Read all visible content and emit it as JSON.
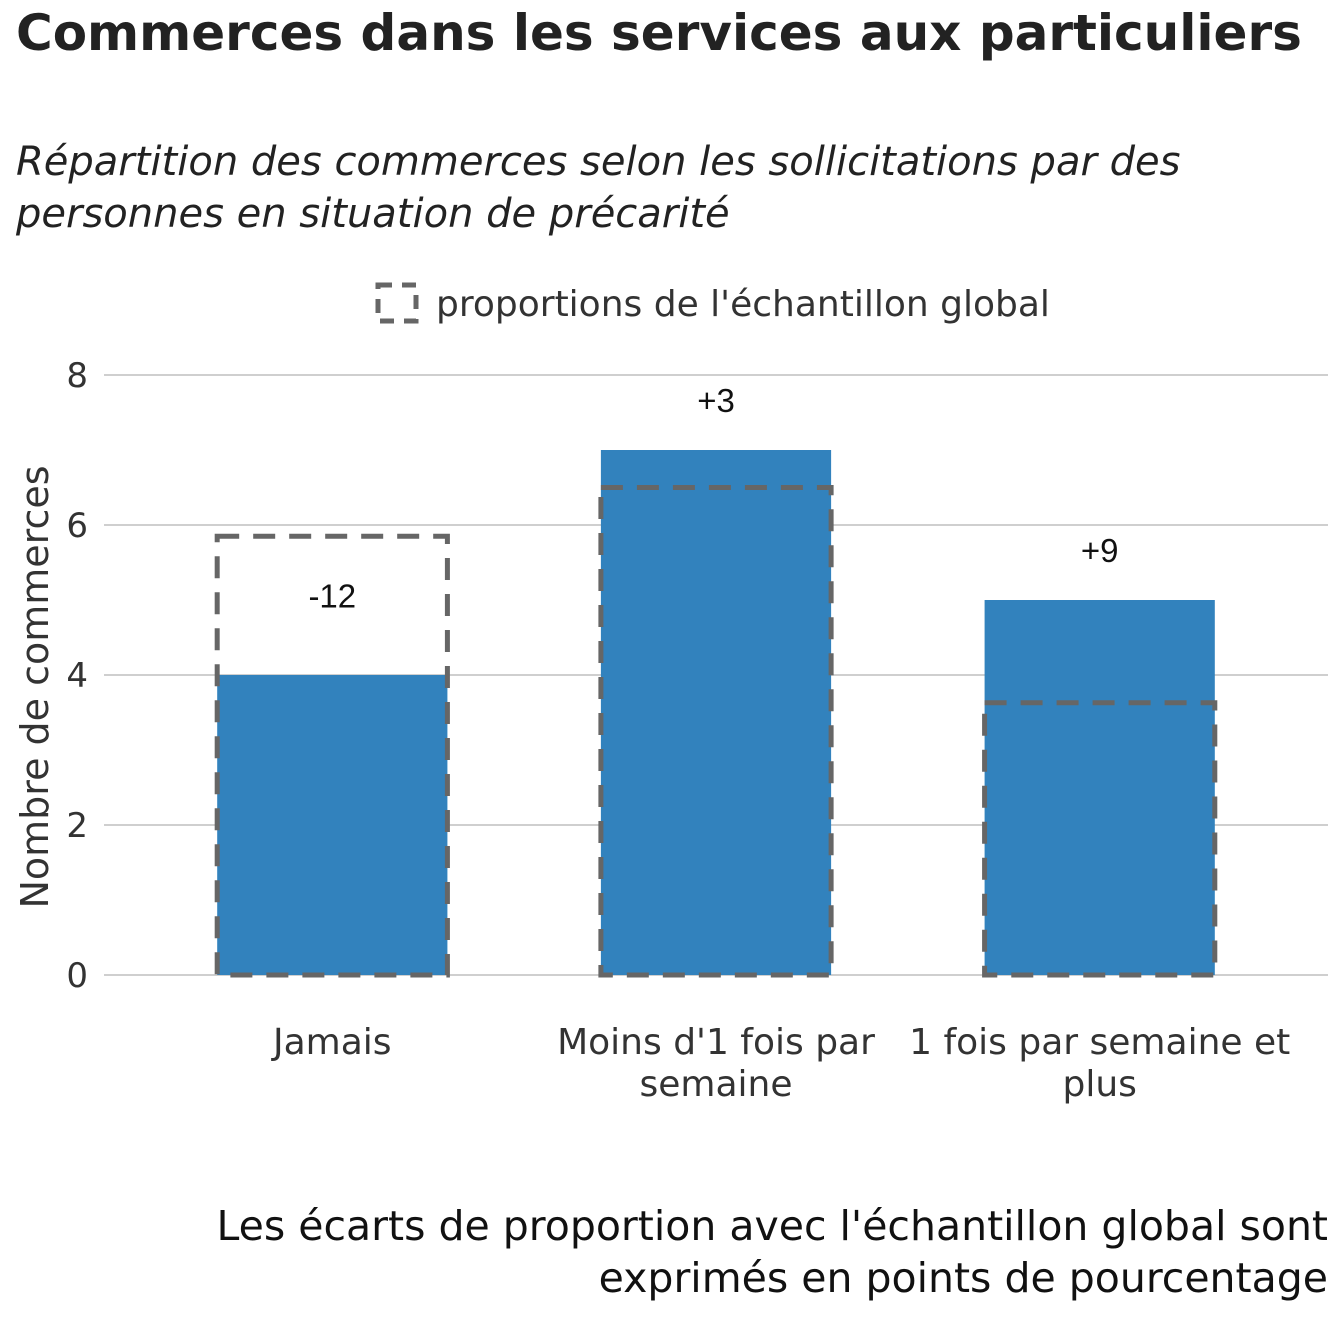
{
  "chart_data": {
    "type": "bar",
    "title": "Commerces dans les services aux particuliers",
    "subtitle": "Répartition des commerces selon les sollicitations par des personnes en situation de précarité",
    "ylabel": "Nombre de commerces",
    "ylim": [
      0,
      8
    ],
    "yticks": [
      0,
      2,
      4,
      6,
      8
    ],
    "ytick_labels": [
      "0",
      "2",
      "4",
      "6",
      "8"
    ],
    "grid": true,
    "categories": [
      [
        "Jamais"
      ],
      [
        "Moins d'1 fois par",
        "semaine"
      ],
      [
        "1 fois par semaine et",
        "plus"
      ]
    ],
    "values": [
      4,
      7,
      5
    ],
    "reference_values": [
      5.85,
      6.5,
      3.63
    ],
    "data_labels": [
      "-12",
      "+3",
      "+9"
    ],
    "legend": {
      "position": "top",
      "label": "proportions de l'échantillon global"
    },
    "colors": {
      "bar": "#3282bd",
      "reference": "#666666",
      "grid": "#cfcfcf"
    },
    "caption": "Les écarts de proportion avec l'échantillon global sont exprimés en points de pourcentage"
  }
}
